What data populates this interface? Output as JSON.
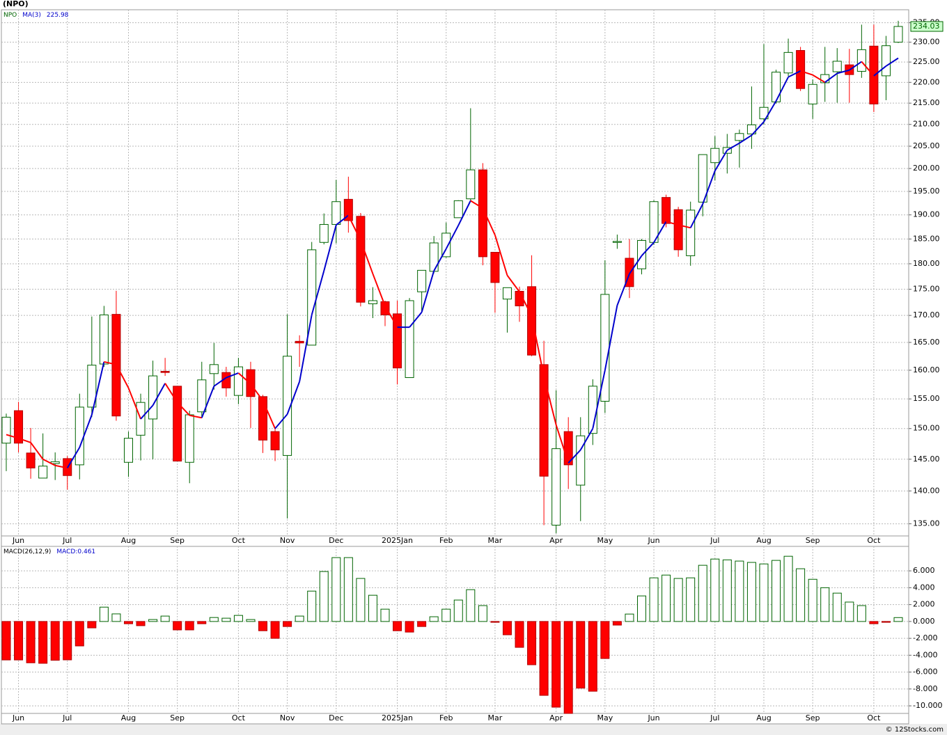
{
  "chart_data": [
    {
      "type": "candlestick",
      "title": "(NPO)",
      "symbol": "NPO",
      "ma_label": "MA(3)",
      "open": [
        147.6,
        153.0,
        146.0,
        142.0,
        144.3,
        145.1,
        144.1,
        153.6,
        161.1,
        170.2,
        144.5,
        148.9,
        151.6,
        159.8,
        157.2,
        144.5,
        152.8,
        159.4,
        159.6,
        155.6,
        160.1,
        155.4,
        149.5,
        145.6,
        165.2,
        164.5,
        184.3,
        188.0,
        193.3,
        189.7,
        172.2,
        172.6,
        170.3,
        158.7,
        174.5,
        178.5,
        181.4,
        189.4,
        193.4,
        199.7,
        182.3,
        173.1,
        174.6,
        175.5,
        161.0,
        134.8,
        149.5,
        140.9,
        149.2,
        154.6,
        184.3,
        181.1,
        179.0,
        184.3,
        193.7,
        191.1,
        181.6,
        192.7,
        201.3,
        203.4,
        206.3,
        207.8,
        211.3,
        215.3,
        222.3,
        227.9,
        214.8,
        219.9,
        222.6,
        224.3,
        222.7,
        229.0,
        221.6,
        230.0
      ],
      "high": [
        152.5,
        154.5,
        150.1,
        149.2,
        146.1,
        145.5,
        155.9,
        169.8,
        171.8,
        174.7,
        149.5,
        155.9,
        161.7,
        162.2,
        157.2,
        153.0,
        161.5,
        164.9,
        160.6,
        162.2,
        161.5,
        155.7,
        150.0,
        170.2,
        166.3,
        184.4,
        190.3,
        197.5,
        198.2,
        190.4,
        175.4,
        172.8,
        172.8,
        173.3,
        178.7,
        185.6,
        188.4,
        193.1,
        213.8,
        201.2,
        182.3,
        175.3,
        175.5,
        181.7,
        165.3,
        156.5,
        151.9,
        151.9,
        158.4,
        180.7,
        185.9,
        185.0,
        185.0,
        193.1,
        194.3,
        191.7,
        192.8,
        203.1,
        207.3,
        207.8,
        208.8,
        219.0,
        229.5,
        223.1,
        230.9,
        228.8,
        220.7,
        228.8,
        228.5,
        228.3,
        234.5,
        234.5,
        231.6,
        235.5
      ],
      "low": [
        143.1,
        146.1,
        141.9,
        142.0,
        141.7,
        140.2,
        141.8,
        151.9,
        160.6,
        151.3,
        142.2,
        144.8,
        145.0,
        159.0,
        144.7,
        141.2,
        151.9,
        156.6,
        155.4,
        154.1,
        150.1,
        146.0,
        144.7,
        135.8,
        160.6,
        164.5,
        183.9,
        184.1,
        186.3,
        171.7,
        169.5,
        168.0,
        157.5,
        158.7,
        170.7,
        178.1,
        181.2,
        189.4,
        193.0,
        179.7,
        170.5,
        166.8,
        168.8,
        162.5,
        134.8,
        133.6,
        140.3,
        135.4,
        147.3,
        152.6,
        183.0,
        173.3,
        177.9,
        183.8,
        187.4,
        181.4,
        179.6,
        189.7,
        197.4,
        198.9,
        200.2,
        204.4,
        210.0,
        214.9,
        221.5,
        217.9,
        211.3,
        215.3,
        215.1,
        215.1,
        221.1,
        212.9,
        215.7,
        229.8
      ],
      "close": [
        151.9,
        147.6,
        143.6,
        143.9,
        144.6,
        142.4,
        153.6,
        160.9,
        170.1,
        152.1,
        148.4,
        154.4,
        159.0,
        159.6,
        144.7,
        152.3,
        158.3,
        161.0,
        156.9,
        160.6,
        155.4,
        148.1,
        146.5,
        162.5,
        164.9,
        182.8,
        188.0,
        192.8,
        188.8,
        172.5,
        172.8,
        170.1,
        160.4,
        172.8,
        178.7,
        184.2,
        186.2,
        193.0,
        199.7,
        181.4,
        176.3,
        175.3,
        171.8,
        162.7,
        142.3,
        146.7,
        144.1,
        148.8,
        157.2,
        174.0,
        184.5,
        175.5,
        184.7,
        192.8,
        188.2,
        182.8,
        191.0,
        203.1,
        204.5,
        204.7,
        207.9,
        209.9,
        214.0,
        222.5,
        227.4,
        218.5,
        219.5,
        221.9,
        225.2,
        221.9,
        228.1,
        214.8,
        229.1,
        234.03
      ],
      "ma": [
        149.0,
        148.4,
        147.7,
        145.0,
        144.0,
        143.6,
        146.9,
        152.3,
        161.5,
        161.0,
        156.9,
        151.6,
        153.9,
        157.7,
        154.4,
        152.2,
        151.8,
        157.2,
        158.7,
        159.5,
        157.6,
        154.7,
        150.0,
        152.4,
        158.0,
        170.1,
        178.6,
        187.9,
        189.9,
        184.7,
        178.0,
        171.8,
        167.8,
        167.8,
        170.6,
        178.6,
        183.0,
        187.8,
        193.0,
        191.4,
        185.8,
        177.7,
        174.5,
        169.9,
        158.9,
        150.6,
        144.4,
        146.5,
        150.0,
        160.0,
        171.9,
        178.0,
        181.6,
        184.3,
        188.6,
        187.9,
        187.3,
        192.3,
        199.5,
        204.1,
        205.7,
        207.5,
        210.6,
        215.5,
        221.3,
        222.8,
        221.8,
        220.0,
        222.2,
        223.0,
        225.1,
        221.6,
        224.0,
        225.98
      ],
      "x_labels": [
        {
          "value": 1,
          "label": "Jun"
        },
        {
          "value": 5,
          "label": "Jul"
        },
        {
          "value": 10,
          "label": "Aug"
        },
        {
          "value": 14,
          "label": "Sep"
        },
        {
          "value": 19,
          "label": "Oct"
        },
        {
          "value": 23,
          "label": "Nov"
        },
        {
          "value": 27,
          "label": "Dec"
        },
        {
          "value": 32,
          "label": "2025Jan"
        },
        {
          "value": 36,
          "label": "Feb"
        },
        {
          "value": 40,
          "label": "Mar"
        },
        {
          "value": 45,
          "label": "Apr"
        },
        {
          "value": 49,
          "label": "May"
        },
        {
          "value": 53,
          "label": "Jun"
        },
        {
          "value": 58,
          "label": "Jul"
        },
        {
          "value": 62,
          "label": "Aug"
        },
        {
          "value": 66,
          "label": "Sep"
        },
        {
          "value": 71,
          "label": "Oct"
        }
      ],
      "ylim": [
        133.2,
        238.4
      ],
      "log_scale": true,
      "yticks": [
        {
          "value": 135,
          "label": "135.00"
        },
        {
          "value": 140,
          "label": "140.00"
        },
        {
          "value": 145,
          "label": "145.00"
        },
        {
          "value": 150,
          "label": "150.00"
        },
        {
          "value": 155,
          "label": "155.00"
        },
        {
          "value": 160,
          "label": "160.00"
        },
        {
          "value": 165,
          "label": "165.00"
        },
        {
          "value": 170,
          "label": "170.00"
        },
        {
          "value": 175,
          "label": "175.00"
        },
        {
          "value": 180,
          "label": "180.00"
        },
        {
          "value": 185,
          "label": "185.00"
        },
        {
          "value": 190,
          "label": "190.00"
        },
        {
          "value": 195,
          "label": "195.00"
        },
        {
          "value": 200,
          "label": "200.00"
        },
        {
          "value": 205,
          "label": "205.00"
        },
        {
          "value": 210,
          "label": "210.00"
        },
        {
          "value": 215,
          "label": "215.00"
        },
        {
          "value": 220,
          "label": "220.00"
        },
        {
          "value": 225,
          "label": "225.00"
        },
        {
          "value": 230,
          "label": "230.00"
        },
        {
          "value": 235,
          "label": "235.00"
        }
      ],
      "grid": true,
      "up_color": "#006400",
      "down_color": "#ff0000",
      "ma_up_color": "#0000cc",
      "ma_down_color": "#ff0000"
    },
    {
      "type": "bar",
      "title": "MACD(26,12,9)",
      "value_prefix": "MACD:",
      "values": [
        -4.56,
        -4.56,
        -4.9,
        -4.96,
        -4.6,
        -4.55,
        -2.9,
        -0.76,
        1.7,
        0.9,
        -0.27,
        -0.5,
        0.23,
        0.64,
        -1.0,
        -1.0,
        -0.27,
        0.47,
        0.39,
        0.72,
        0.23,
        -1.1,
        -2.0,
        -0.6,
        0.64,
        3.6,
        5.92,
        7.57,
        7.57,
        5.1,
        3.11,
        1.46,
        -1.1,
        -1.26,
        -0.6,
        0.56,
        1.46,
        2.54,
        3.77,
        1.88,
        -0.1,
        -1.58,
        -3.07,
        -5.13,
        -8.76,
        -10.16,
        -10.9,
        -7.9,
        -8.27,
        -4.39,
        -0.43,
        0.88,
        3.03,
        5.17,
        5.5,
        5.1,
        5.17,
        6.66,
        7.4,
        7.3,
        7.16,
        7.0,
        6.82,
        7.24,
        7.73,
        6.25,
        5.0,
        4.0,
        3.36,
        2.3,
        1.88,
        -0.27,
        -0.1,
        0.461
      ],
      "x_labels": [
        {
          "value": 1,
          "label": "Jun"
        },
        {
          "value": 5,
          "label": "Jul"
        },
        {
          "value": 10,
          "label": "Aug"
        },
        {
          "value": 14,
          "label": "Sep"
        },
        {
          "value": 19,
          "label": "Oct"
        },
        {
          "value": 23,
          "label": "Nov"
        },
        {
          "value": 27,
          "label": "Dec"
        },
        {
          "value": 32,
          "label": "2025Jan"
        },
        {
          "value": 36,
          "label": "Feb"
        },
        {
          "value": 40,
          "label": "Mar"
        },
        {
          "value": 45,
          "label": "Apr"
        },
        {
          "value": 49,
          "label": "May"
        },
        {
          "value": 53,
          "label": "Jun"
        },
        {
          "value": 58,
          "label": "Jul"
        },
        {
          "value": 62,
          "label": "Aug"
        },
        {
          "value": 66,
          "label": "Sep"
        },
        {
          "value": 71,
          "label": "Oct"
        }
      ],
      "ylim": [
        -10.9,
        8.9
      ],
      "yticks": [
        {
          "value": -10,
          "label": "-10.000"
        },
        {
          "value": -8,
          "label": "-8.000"
        },
        {
          "value": -6,
          "label": "-6.000"
        },
        {
          "value": -4,
          "label": "-4.000"
        },
        {
          "value": -2,
          "label": "-2.000"
        },
        {
          "value": 0,
          "label": "0.000"
        },
        {
          "value": 2,
          "label": "2.000"
        },
        {
          "value": 4,
          "label": "4.000"
        },
        {
          "value": 6,
          "label": "6.000"
        }
      ],
      "grid": true,
      "positive_color": "#006400",
      "negative_color": "#ff0000"
    }
  ],
  "footer": "© 12Stocks.com"
}
